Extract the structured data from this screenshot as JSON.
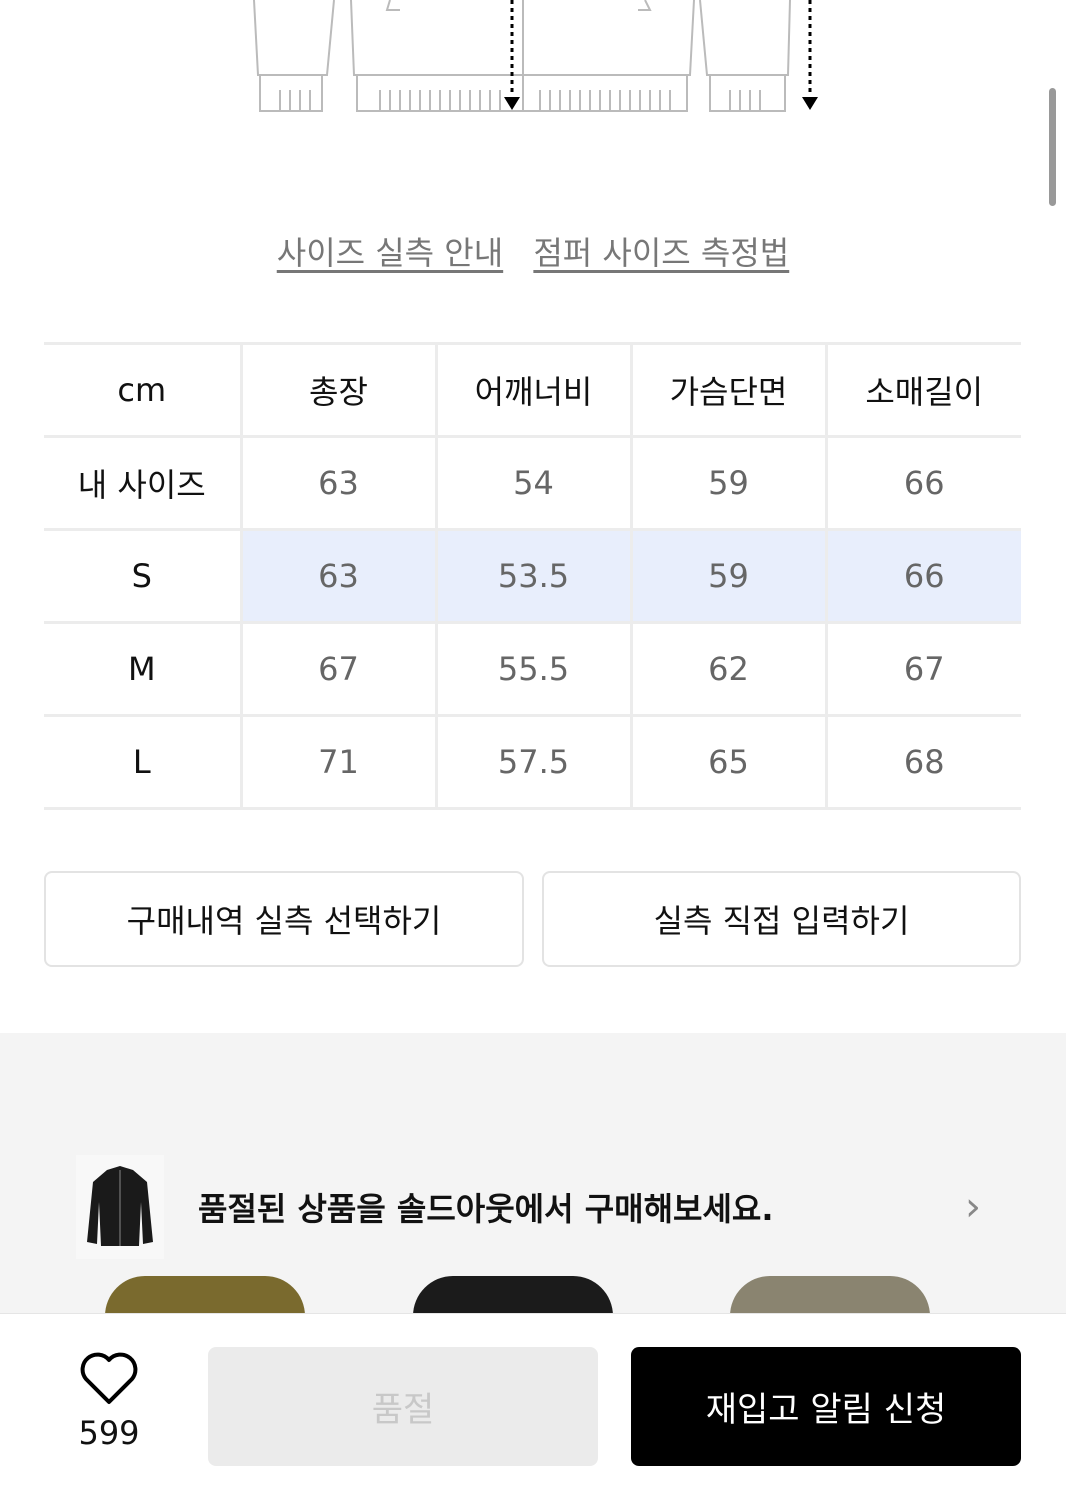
{
  "links": [
    "사이즈 실측 안내",
    "점퍼 사이즈 측정법"
  ],
  "table": {
    "headers": [
      "cm",
      "총장",
      "어깨너비",
      "가슴단면",
      "소매길이"
    ],
    "rows": [
      [
        "내 사이즈",
        "63",
        "54",
        "59",
        "66"
      ],
      [
        "S",
        "63",
        "53.5",
        "59",
        "66"
      ],
      [
        "M",
        "67",
        "55.5",
        "62",
        "67"
      ],
      [
        "L",
        "71",
        "57.5",
        "65",
        "68"
      ]
    ],
    "highlight_color": "#e8eefc"
  },
  "buttons": {
    "purchase_history": "구매내역 실측 선택하기",
    "direct_input": "실측 직접 입력하기"
  },
  "banner": {
    "text": "품절된 상품을 솔드아웃에서 구매해보세요."
  },
  "bottom": {
    "likes": "599",
    "soldout": "품절",
    "restock": "재입고 알림 신청"
  }
}
